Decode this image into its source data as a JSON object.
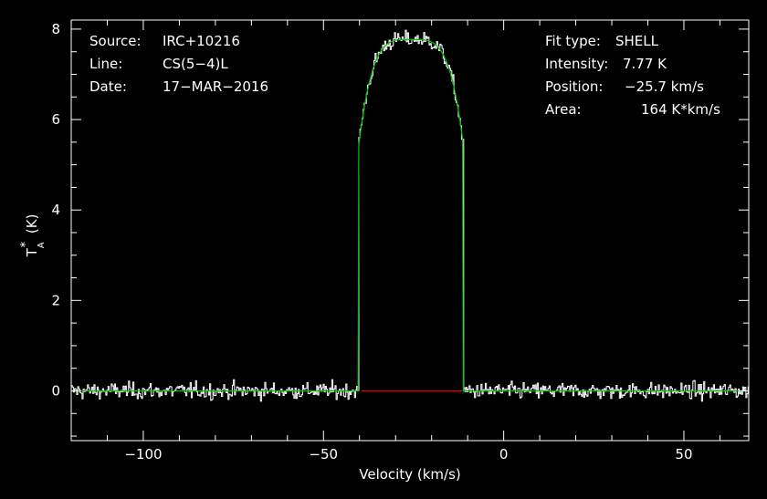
{
  "chart_data": {
    "type": "line",
    "xlabel": "Velocity (km/s)",
    "ylabel_main": "T",
    "ylabel_sup": "*",
    "ylabel_sub": "A",
    "ylabel_unit": "(K)",
    "xlim": [
      -120,
      68
    ],
    "ylim": [
      -1.1,
      8.2
    ],
    "xticks": [
      -100,
      -50,
      0,
      50
    ],
    "xtick_labels": [
      "−100",
      "−50",
      "0",
      "50"
    ],
    "yticks": [
      0,
      2,
      4,
      6,
      8
    ],
    "ytick_labels": [
      "0",
      "2",
      "4",
      "6",
      "8"
    ],
    "grid": false,
    "colors": {
      "background": "#000000",
      "data": "#ffffff",
      "fit": "#00c000",
      "baseline": "#e00000",
      "axes": "#ffffff"
    },
    "noise_rms": 0.18,
    "fit": {
      "model": "SHELL",
      "center": -25.7,
      "peak": 7.77,
      "half_width": 14.5,
      "horn_ratio": 0.7
    },
    "baseline_segment": {
      "x": [
        -39.5,
        -11.5
      ],
      "y": 0
    },
    "series": [
      {
        "role": "data",
        "style": "histogram"
      },
      {
        "role": "fit",
        "style": "line"
      }
    ],
    "info_left": [
      {
        "key": "Source:",
        "value": "IRC+10216"
      },
      {
        "key": "Line:",
        "value": "CS(5−4)L"
      },
      {
        "key": "Date:",
        "value": "17−MAR−2016"
      }
    ],
    "info_right": [
      {
        "key": "Fit type:",
        "value": "SHELL"
      },
      {
        "key": "Intensity:",
        "value": "7.77 K"
      },
      {
        "key": "Position:",
        "value": "−25.7 km/s"
      },
      {
        "key": "Area:",
        "value": "164 K*km/s"
      }
    ]
  }
}
